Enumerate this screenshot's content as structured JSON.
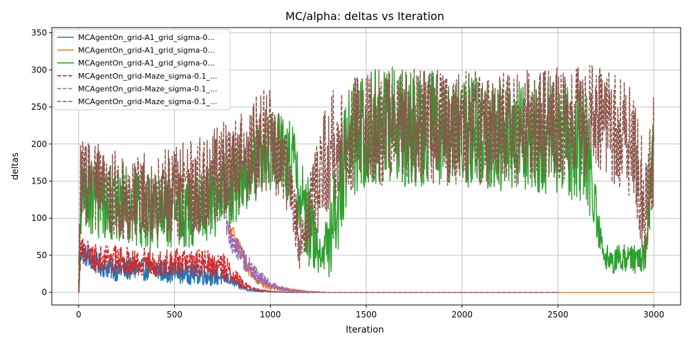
{
  "chart_data": {
    "type": "line",
    "title": "MC/alpha: deltas vs Iteration",
    "xlabel": "Iteration",
    "ylabel": "deltas",
    "xlim": [
      -140,
      3140
    ],
    "ylim": [
      -17,
      357
    ],
    "xticks": [
      0,
      500,
      1000,
      1500,
      2000,
      2500,
      3000
    ],
    "yticks": [
      0,
      50,
      100,
      150,
      200,
      250,
      300,
      350
    ],
    "grid": true,
    "legend_position": "upper-left",
    "series": [
      {
        "name": "MCAgentOn_grid-A1_grid_sigma-0...",
        "color": "#1f77b4",
        "dash": "solid",
        "key_points": [
          [
            0,
            0
          ],
          [
            10,
            55
          ],
          [
            100,
            38
          ],
          [
            200,
            30
          ],
          [
            300,
            32
          ],
          [
            400,
            30
          ],
          [
            500,
            28
          ],
          [
            600,
            26
          ],
          [
            700,
            24
          ],
          [
            780,
            18
          ],
          [
            840,
            8
          ],
          [
            900,
            3
          ],
          [
            1000,
            1
          ],
          [
            1100,
            0
          ],
          [
            2530,
            0
          ]
        ],
        "noise": [
          [
            0,
            12
          ],
          [
            700,
            12
          ],
          [
            800,
            5
          ],
          [
            900,
            1.5
          ],
          [
            1000,
            0.5
          ],
          [
            1100,
            0
          ]
        ]
      },
      {
        "name": "MCAgentOn_grid-A1_grid_sigma-0...",
        "color": "#ff7f0e",
        "dash": "solid",
        "key_points": [
          [
            780,
            80
          ],
          [
            820,
            75
          ],
          [
            860,
            45
          ],
          [
            900,
            28
          ],
          [
            950,
            15
          ],
          [
            1000,
            8
          ],
          [
            1100,
            3
          ],
          [
            1200,
            1
          ],
          [
            1300,
            0
          ],
          [
            3000,
            0
          ]
        ],
        "noise": [
          [
            780,
            12
          ],
          [
            900,
            8
          ],
          [
            1000,
            4
          ],
          [
            1100,
            2
          ],
          [
            1200,
            0.5
          ],
          [
            1300,
            0
          ]
        ]
      },
      {
        "name": "MCAgentOn_grid-A1_grid_sigma-0...",
        "color": "#2ca02c",
        "dash": "solid",
        "key_points": [
          [
            0,
            0
          ],
          [
            10,
            130
          ],
          [
            200,
            120
          ],
          [
            400,
            110
          ],
          [
            600,
            110
          ],
          [
            800,
            140
          ],
          [
            900,
            170
          ],
          [
            1000,
            190
          ],
          [
            1100,
            180
          ],
          [
            1200,
            100
          ],
          [
            1250,
            50
          ],
          [
            1300,
            60
          ],
          [
            1400,
            200
          ],
          [
            1500,
            220
          ],
          [
            1600,
            230
          ],
          [
            1700,
            220
          ],
          [
            2000,
            220
          ],
          [
            2400,
            210
          ],
          [
            2650,
            200
          ],
          [
            2700,
            100
          ],
          [
            2750,
            45
          ],
          [
            2900,
            45
          ],
          [
            2960,
            50
          ],
          [
            3000,
            200
          ]
        ],
        "noise": [
          [
            0,
            40
          ],
          [
            1000,
            40
          ],
          [
            1200,
            50
          ],
          [
            1260,
            15
          ],
          [
            1350,
            60
          ],
          [
            2650,
            60
          ],
          [
            2720,
            15
          ],
          [
            2950,
            15
          ],
          [
            3000,
            50
          ]
        ]
      },
      {
        "name": "MCAgentOn_grid-Maze_sigma-0.1_...",
        "color": "#d62728",
        "dash": "dashed",
        "key_points": [
          [
            0,
            0
          ],
          [
            10,
            60
          ],
          [
            100,
            45
          ],
          [
            300,
            42
          ],
          [
            500,
            40
          ],
          [
            650,
            38
          ],
          [
            750,
            35
          ],
          [
            800,
            25
          ],
          [
            850,
            12
          ],
          [
            900,
            5
          ],
          [
            1000,
            1
          ],
          [
            1100,
            0
          ],
          [
            2500,
            0
          ]
        ],
        "noise": [
          [
            0,
            15
          ],
          [
            750,
            15
          ],
          [
            850,
            6
          ],
          [
            900,
            2
          ],
          [
            1000,
            0.5
          ],
          [
            1100,
            0
          ]
        ]
      },
      {
        "name": "MCAgentOn_grid-Maze_sigma-0.1_...",
        "color": "#9467bd",
        "dash": "dashed",
        "key_points": [
          [
            770,
            85
          ],
          [
            800,
            70
          ],
          [
            850,
            50
          ],
          [
            900,
            30
          ],
          [
            950,
            18
          ],
          [
            1000,
            10
          ],
          [
            1050,
            6
          ],
          [
            1100,
            3
          ],
          [
            1200,
            1
          ],
          [
            1300,
            0
          ],
          [
            2500,
            0
          ]
        ],
        "noise": [
          [
            770,
            15
          ],
          [
            900,
            10
          ],
          [
            1000,
            5
          ],
          [
            1100,
            2
          ],
          [
            1200,
            0.5
          ],
          [
            1300,
            0
          ]
        ]
      },
      {
        "name": "MCAgentOn_grid-Maze_sigma-0.1_...",
        "color": "#8c564b",
        "dash": "dashed",
        "key_points": [
          [
            0,
            0
          ],
          [
            10,
            150
          ],
          [
            200,
            130
          ],
          [
            400,
            130
          ],
          [
            600,
            140
          ],
          [
            800,
            170
          ],
          [
            1000,
            210
          ],
          [
            1100,
            150
          ],
          [
            1150,
            70
          ],
          [
            1200,
            100
          ],
          [
            1300,
            190
          ],
          [
            1500,
            220
          ],
          [
            1700,
            225
          ],
          [
            2000,
            220
          ],
          [
            2500,
            225
          ],
          [
            2700,
            230
          ],
          [
            2900,
            200
          ],
          [
            2960,
            100
          ],
          [
            3000,
            200
          ]
        ],
        "noise": [
          [
            0,
            45
          ],
          [
            1000,
            55
          ],
          [
            1150,
            30
          ],
          [
            1300,
            60
          ],
          [
            2900,
            60
          ],
          [
            3000,
            60
          ]
        ]
      }
    ]
  }
}
